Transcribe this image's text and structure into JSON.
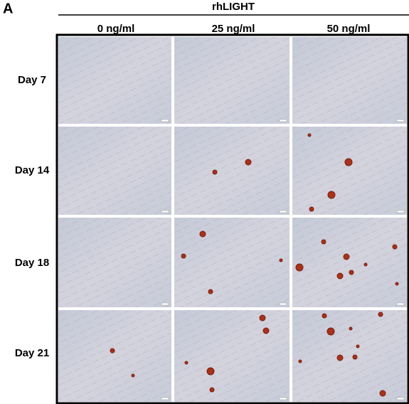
{
  "panel_label": "A",
  "header": {
    "title": "rhLIGHT",
    "columns": [
      "0 ng/ml",
      "25 ng/ml",
      "50 ng/ml"
    ]
  },
  "rows": [
    "Day 7",
    "Day 14",
    "Day 18",
    "Day 21"
  ]
}
